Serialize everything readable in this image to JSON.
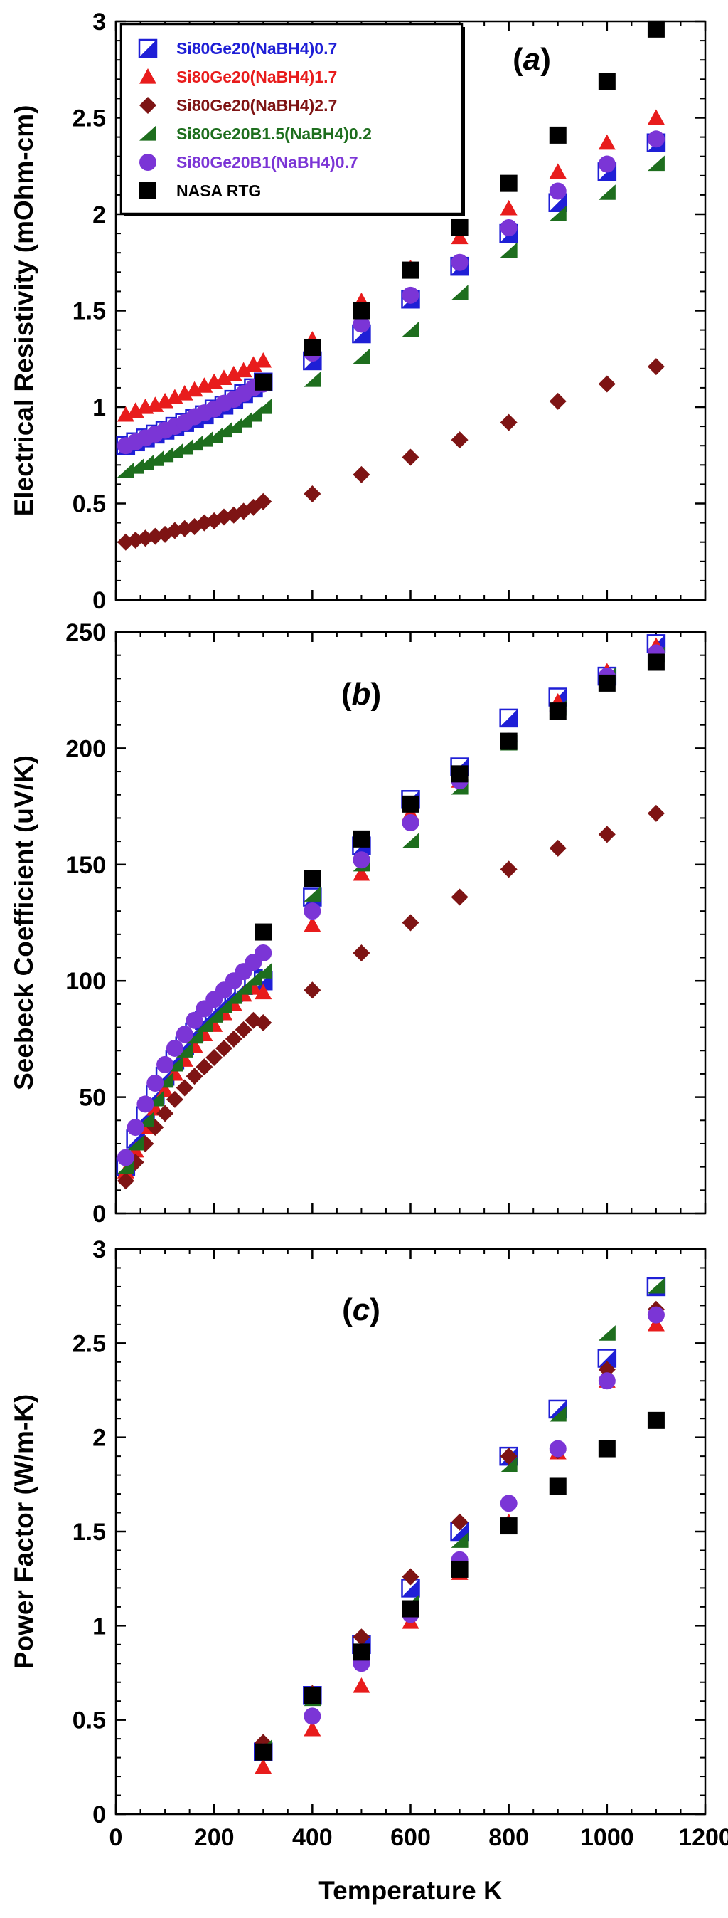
{
  "chart_data": [
    {
      "type": "scatter",
      "panel_label": "(a)",
      "ylabel": "Electrical Resistivity (mOhm-cm)",
      "xlabel": "",
      "xlim": [
        0,
        1200
      ],
      "ylim": [
        0,
        3
      ],
      "yticks": [
        0,
        0.5,
        1,
        1.5,
        2,
        2.5,
        3
      ],
      "yticklabels": [
        "0",
        "0.5",
        "1",
        "1.5",
        "2",
        "2.5",
        "3"
      ],
      "legend_position": "top-left",
      "series": [
        {
          "name": "Si80Ge20(NaBH4)0.7",
          "color": "#1f1fd6",
          "marker": "half-square",
          "x": [
            20,
            40,
            60,
            80,
            100,
            120,
            140,
            160,
            180,
            200,
            220,
            240,
            260,
            280,
            300,
            400,
            500,
            600,
            700,
            800,
            900,
            1000,
            1100
          ],
          "y": [
            0.8,
            0.82,
            0.84,
            0.86,
            0.88,
            0.9,
            0.92,
            0.94,
            0.96,
            0.99,
            1.01,
            1.04,
            1.07,
            1.1,
            1.13,
            1.24,
            1.38,
            1.56,
            1.73,
            1.9,
            2.06,
            2.22,
            2.37
          ]
        },
        {
          "name": "Si80Ge20(NaBH4)1.7",
          "color": "#e81c1c",
          "marker": "triangle",
          "x": [
            20,
            40,
            60,
            80,
            100,
            120,
            140,
            160,
            180,
            200,
            220,
            240,
            260,
            280,
            300,
            400,
            500,
            600,
            700,
            800,
            900,
            1000,
            1100
          ],
          "y": [
            0.96,
            0.98,
            1.0,
            1.01,
            1.03,
            1.05,
            1.07,
            1.09,
            1.11,
            1.13,
            1.15,
            1.17,
            1.19,
            1.22,
            1.24,
            1.35,
            1.55,
            1.72,
            1.88,
            2.03,
            2.22,
            2.37,
            2.5
          ]
        },
        {
          "name": "Si80Ge20(NaBH4)2.7",
          "color": "#7e1414",
          "marker": "diamond",
          "x": [
            20,
            40,
            60,
            80,
            100,
            120,
            140,
            160,
            180,
            200,
            220,
            240,
            260,
            280,
            300,
            400,
            500,
            600,
            700,
            800,
            900,
            1000,
            1100
          ],
          "y": [
            0.3,
            0.31,
            0.32,
            0.33,
            0.34,
            0.36,
            0.37,
            0.38,
            0.4,
            0.41,
            0.43,
            0.44,
            0.46,
            0.48,
            0.51,
            0.55,
            0.65,
            0.74,
            0.83,
            0.92,
            1.03,
            1.12,
            1.21
          ]
        },
        {
          "name": "Si80Ge20B1.5(NaBH4)0.2",
          "color": "#1e6e1e",
          "marker": "half-triangle",
          "x": [
            20,
            40,
            60,
            80,
            100,
            120,
            140,
            160,
            180,
            200,
            220,
            240,
            260,
            280,
            300,
            400,
            500,
            600,
            700,
            800,
            900,
            1000,
            1100
          ],
          "y": [
            0.67,
            0.69,
            0.71,
            0.73,
            0.75,
            0.77,
            0.79,
            0.81,
            0.83,
            0.85,
            0.88,
            0.9,
            0.93,
            0.96,
            1.0,
            1.14,
            1.26,
            1.4,
            1.59,
            1.81,
            2.0,
            2.11,
            2.26
          ]
        },
        {
          "name": "Si80Ge20B1(NaBH4)0.7",
          "color": "#7b35d6",
          "marker": "circle",
          "x": [
            20,
            40,
            60,
            80,
            100,
            120,
            140,
            160,
            180,
            200,
            220,
            240,
            260,
            280,
            300,
            400,
            500,
            600,
            700,
            800,
            900,
            1000,
            1100
          ],
          "y": [
            0.8,
            0.82,
            0.84,
            0.86,
            0.88,
            0.9,
            0.92,
            0.95,
            0.97,
            0.99,
            1.02,
            1.04,
            1.07,
            1.1,
            1.12,
            1.28,
            1.43,
            1.58,
            1.75,
            1.93,
            2.12,
            2.26,
            2.39
          ]
        },
        {
          "name": "NASA RTG",
          "color": "#000000",
          "marker": "square",
          "x": [
            300,
            400,
            500,
            600,
            700,
            800,
            900,
            1000,
            1100
          ],
          "y": [
            1.13,
            1.31,
            1.5,
            1.71,
            1.93,
            2.16,
            2.41,
            2.69,
            2.96
          ]
        }
      ]
    },
    {
      "type": "scatter",
      "panel_label": "(b)",
      "ylabel": "Seebeck Coefficient  (uV/K)",
      "xlabel": "",
      "xlim": [
        0,
        1200
      ],
      "ylim": [
        0,
        250
      ],
      "yticks": [
        0,
        50,
        100,
        150,
        200,
        250
      ],
      "yticklabels": [
        "0",
        "50",
        "100",
        "150",
        "200",
        "250"
      ],
      "series": [
        {
          "name": "Si80Ge20(NaBH4)0.7",
          "color": "#1f1fd6",
          "marker": "half-square",
          "x": [
            20,
            40,
            60,
            80,
            100,
            120,
            140,
            160,
            180,
            200,
            220,
            240,
            260,
            280,
            300,
            400,
            500,
            600,
            700,
            800,
            900,
            1000,
            1100
          ],
          "y": [
            20,
            32,
            42,
            51,
            59,
            66,
            72,
            78,
            83,
            87,
            91,
            95,
            98,
            101,
            100,
            136,
            158,
            178,
            192,
            213,
            222,
            231,
            245
          ]
        },
        {
          "name": "Si80Ge20(NaBH4)1.7",
          "color": "#e81c1c",
          "marker": "triangle",
          "x": [
            20,
            40,
            60,
            80,
            100,
            120,
            140,
            160,
            180,
            200,
            220,
            240,
            260,
            280,
            300,
            400,
            500,
            600,
            700,
            800,
            900,
            1000,
            1100
          ],
          "y": [
            18,
            27,
            37,
            45,
            53,
            60,
            66,
            72,
            77,
            81,
            86,
            90,
            94,
            97,
            95,
            124,
            146,
            172,
            186,
            203,
            220,
            233,
            244
          ]
        },
        {
          "name": "Si80Ge20(NaBH4)2.7",
          "color": "#7e1414",
          "marker": "diamond",
          "x": [
            20,
            40,
            60,
            80,
            100,
            120,
            140,
            160,
            180,
            200,
            220,
            240,
            260,
            280,
            300,
            400,
            500,
            600,
            700,
            800,
            900,
            1000,
            1100
          ],
          "y": [
            14,
            22,
            30,
            37,
            43,
            49,
            54,
            59,
            63,
            67,
            71,
            75,
            79,
            83,
            82,
            96,
            112,
            125,
            136,
            148,
            157,
            163,
            172
          ]
        },
        {
          "name": "Si80Ge20B1.5(NaBH4)0.2",
          "color": "#1e6e1e",
          "marker": "half-triangle",
          "x": [
            20,
            40,
            60,
            80,
            100,
            120,
            140,
            160,
            180,
            200,
            220,
            240,
            260,
            280,
            300,
            400,
            500,
            600,
            700,
            800,
            900,
            1000,
            1100
          ],
          "y": [
            20,
            30,
            40,
            49,
            57,
            64,
            70,
            76,
            81,
            85,
            89,
            93,
            97,
            101,
            104,
            137,
            150,
            160,
            183,
            202,
            217,
            231,
            240
          ]
        },
        {
          "name": "Si80Ge20B1(NaBH4)0.7",
          "color": "#7b35d6",
          "marker": "circle",
          "x": [
            20,
            40,
            60,
            80,
            100,
            120,
            140,
            160,
            180,
            200,
            220,
            240,
            260,
            280,
            300,
            400,
            500,
            600,
            700,
            800,
            900,
            1000,
            1100
          ],
          "y": [
            24,
            37,
            47,
            56,
            64,
            71,
            77,
            83,
            88,
            92,
            96,
            100,
            104,
            108,
            112,
            130,
            152,
            168,
            186,
            203,
            216,
            231,
            241
          ]
        },
        {
          "name": "NASA RTG",
          "color": "#000000",
          "marker": "square",
          "x": [
            300,
            400,
            500,
            600,
            700,
            800,
            900,
            1000,
            1100
          ],
          "y": [
            121,
            144,
            161,
            176,
            189,
            203,
            216,
            228,
            237
          ]
        }
      ]
    },
    {
      "type": "scatter",
      "panel_label": "(c)",
      "ylabel": "Power Factor (W/m-K)",
      "xlabel": "Temperature K",
      "xlim": [
        0,
        1200
      ],
      "ylim": [
        0,
        3
      ],
      "xticks": [
        0,
        200,
        400,
        600,
        800,
        1000,
        1200
      ],
      "xticklabels": [
        "0",
        "200",
        "400",
        "600",
        "800",
        "1000",
        "1200"
      ],
      "yticks": [
        0,
        0.5,
        1,
        1.5,
        2,
        2.5,
        3
      ],
      "yticklabels": [
        "0",
        "0.5",
        "1",
        "1.5",
        "2",
        "2.5",
        "3"
      ],
      "series": [
        {
          "name": "Si80Ge20(NaBH4)0.7",
          "color": "#1f1fd6",
          "marker": "half-square",
          "x": [
            300,
            400,
            500,
            600,
            700,
            800,
            900,
            1000,
            1100
          ],
          "y": [
            0.33,
            0.63,
            0.9,
            1.2,
            1.5,
            1.9,
            2.15,
            2.42,
            2.8
          ]
        },
        {
          "name": "Si80Ge20(NaBH4)1.7",
          "color": "#e81c1c",
          "marker": "triangle",
          "x": [
            300,
            400,
            500,
            600,
            700,
            800,
            900,
            1000,
            1100
          ],
          "y": [
            0.25,
            0.45,
            0.68,
            1.02,
            1.28,
            1.55,
            1.92,
            2.3,
            2.6
          ]
        },
        {
          "name": "Si80Ge20(NaBH4)2.7",
          "color": "#7e1414",
          "marker": "diamond",
          "x": [
            300,
            400,
            500,
            600,
            700,
            800,
            900,
            1000,
            1100
          ],
          "y": [
            0.38,
            0.64,
            0.94,
            1.26,
            1.55,
            1.9,
            1.93,
            2.36,
            2.68
          ]
        },
        {
          "name": "Si80Ge20B1.5(NaBH4)0.2",
          "color": "#1e6e1e",
          "marker": "half-triangle",
          "x": [
            300,
            400,
            500,
            600,
            700,
            800,
            900,
            1000,
            1100
          ],
          "y": [
            0.35,
            0.61,
            0.86,
            1.12,
            1.45,
            1.85,
            2.12,
            2.55,
            2.8
          ]
        },
        {
          "name": "Si80Ge20B1(NaBH4)0.7",
          "color": "#7b35d6",
          "marker": "circle",
          "x": [
            300,
            400,
            500,
            600,
            700,
            800,
            900,
            1000,
            1100
          ],
          "y": [
            0.33,
            0.52,
            0.8,
            1.06,
            1.35,
            1.65,
            1.94,
            2.3,
            2.65
          ]
        },
        {
          "name": "NASA RTG",
          "color": "#000000",
          "marker": "square",
          "x": [
            300,
            400,
            500,
            600,
            700,
            800,
            900,
            1000,
            1100
          ],
          "y": [
            0.33,
            0.63,
            0.86,
            1.09,
            1.3,
            1.53,
            1.74,
            1.94,
            2.09
          ]
        }
      ]
    }
  ]
}
